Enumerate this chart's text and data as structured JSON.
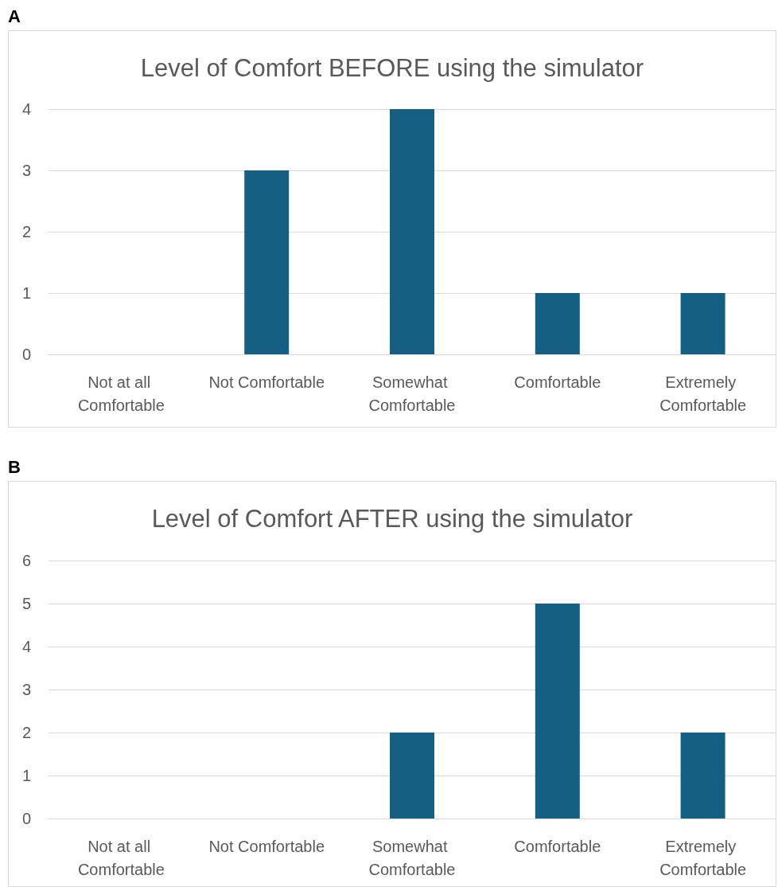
{
  "chart_data": [
    {
      "type": "bar",
      "title": "Level of Comfort BEFORE using the simulator",
      "annotations": [
        "A"
      ],
      "categories": [
        "Not at all Comfortable",
        "Not Comfortable",
        "Somewhat Comfortable",
        "Comfortable",
        "Extremely Comfortable"
      ],
      "values": [
        0,
        3,
        4,
        1,
        1
      ],
      "color": "#156082",
      "ylim": [
        0,
        4
      ],
      "yticks": [
        0,
        1,
        2,
        3,
        4
      ],
      "grid": "y"
    },
    {
      "type": "bar",
      "title": "Level of Comfort AFTER using the simulator",
      "annotations": [
        "B"
      ],
      "categories": [
        "Not at all Comfortable",
        "Not Comfortable",
        "Somewhat Comfortable",
        "Comfortable",
        "Extremely Comfortable"
      ],
      "values": [
        0,
        0,
        2,
        5,
        2
      ],
      "color": "#156082",
      "ylim": [
        0,
        6
      ],
      "yticks": [
        0,
        1,
        2,
        3,
        4,
        5,
        6
      ],
      "grid": "y"
    }
  ]
}
